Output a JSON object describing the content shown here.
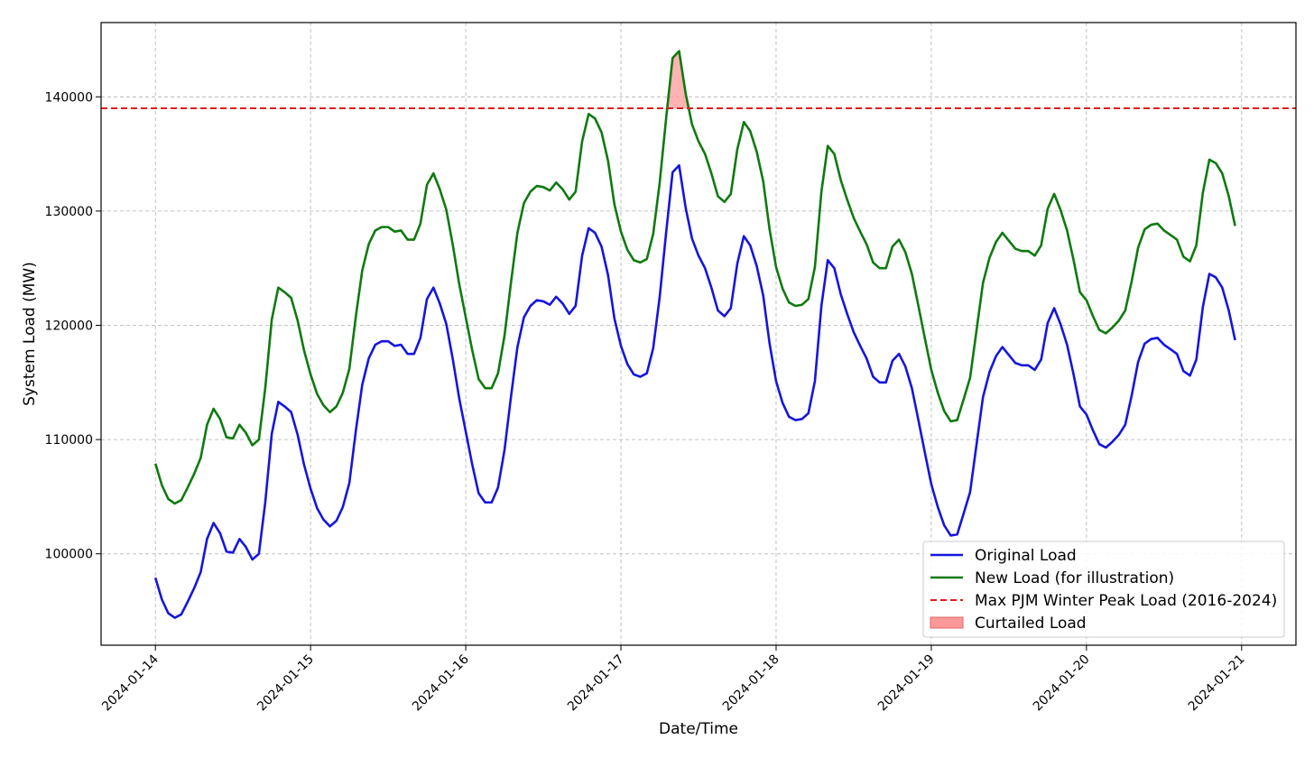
{
  "chart_data": {
    "type": "line",
    "title": "",
    "xlabel": "Date/Time",
    "ylabel": "System Load (MW)",
    "x_ticks": [
      "2024-01-14",
      "2024-01-15",
      "2024-01-16",
      "2024-01-17",
      "2024-01-18",
      "2024-01-19",
      "2024-01-20",
      "2024-01-21"
    ],
    "y_ticks": [
      100000,
      110000,
      120000,
      130000,
      140000
    ],
    "xlim_days": [
      -0.35,
      7.35
    ],
    "ylim": [
      92000,
      146500
    ],
    "grid": true,
    "legend_position": "bottom-right",
    "reference_line": {
      "name": "Max PJM Winter Peak Load (2016-2024)",
      "value": 139000,
      "color": "#e31a1c",
      "style": "dashed"
    },
    "curtailed": {
      "name": "Curtailed Load",
      "color": "#ff9999"
    },
    "offset_mw": 10000,
    "series": [
      {
        "name": "Original Load",
        "color": "#1515e0",
        "x_days": [
          0,
          0.042,
          0.083,
          0.125,
          0.167,
          0.208,
          0.25,
          0.292,
          0.333,
          0.375,
          0.417,
          0.458,
          0.5,
          0.542,
          0.583,
          0.625,
          0.667,
          0.708,
          0.75,
          0.792,
          0.833,
          0.875,
          0.917,
          0.958,
          1,
          1.042,
          1.083,
          1.125,
          1.167,
          1.208,
          1.25,
          1.292,
          1.333,
          1.375,
          1.417,
          1.458,
          1.5,
          1.542,
          1.583,
          1.625,
          1.667,
          1.708,
          1.75,
          1.792,
          1.833,
          1.875,
          1.917,
          1.958,
          2,
          2.042,
          2.083,
          2.125,
          2.167,
          2.208,
          2.25,
          2.292,
          2.333,
          2.375,
          2.417,
          2.458,
          2.5,
          2.542,
          2.583,
          2.625,
          2.667,
          2.708,
          2.75,
          2.792,
          2.833,
          2.875,
          2.917,
          2.958,
          3,
          3.042,
          3.083,
          3.125,
          3.167,
          3.208,
          3.25,
          3.292,
          3.333,
          3.375,
          3.417,
          3.458,
          3.5,
          3.542,
          3.583,
          3.625,
          3.667,
          3.708,
          3.75,
          3.792,
          3.833,
          3.875,
          3.917,
          3.958,
          4,
          4.042,
          4.083,
          4.125,
          4.167,
          4.208,
          4.25,
          4.292,
          4.333,
          4.375,
          4.417,
          4.458,
          4.5,
          4.542,
          4.583,
          4.625,
          4.667,
          4.708,
          4.75,
          4.792,
          4.833,
          4.875,
          4.917,
          4.958,
          5,
          5.042,
          5.083,
          5.125,
          5.167,
          5.208,
          5.25,
          5.292,
          5.333,
          5.375,
          5.417,
          5.458,
          5.5,
          5.542,
          5.583,
          5.625,
          5.667,
          5.708,
          5.75,
          5.792,
          5.833,
          5.875,
          5.917,
          5.958,
          6,
          6.042,
          6.083,
          6.125,
          6.167,
          6.208,
          6.25,
          6.292,
          6.333,
          6.375,
          6.417,
          6.458,
          6.5,
          6.542,
          6.583,
          6.625,
          6.667,
          6.708,
          6.75,
          6.792,
          6.833,
          6.875,
          6.917,
          6.958
        ],
        "values": [
          97900,
          96000,
          94800,
          94400,
          94700,
          95800,
          97000,
          98400,
          101300,
          102700,
          101800,
          100200,
          100100,
          101300,
          100600,
          99500,
          100000,
          104500,
          110500,
          113300,
          112900,
          112400,
          110400,
          107800,
          105700,
          104000,
          103000,
          102400,
          102900,
          104100,
          106200,
          110800,
          114800,
          117100,
          118300,
          118600,
          118600,
          118200,
          118300,
          117500,
          117500,
          118900,
          122300,
          123300,
          121900,
          120100,
          117000,
          113600,
          110700,
          107800,
          105300,
          104500,
          104500,
          105800,
          109100,
          113800,
          118100,
          120700,
          121700,
          122200,
          122100,
          121800,
          122500,
          121900,
          121000,
          121700,
          126100,
          128500,
          128100,
          126900,
          124400,
          120600,
          118200,
          116600,
          115700,
          115500,
          115800,
          118000,
          122500,
          128200,
          133400,
          134000,
          130300,
          127600,
          126100,
          125000,
          123300,
          121300,
          120800,
          121500,
          125400,
          127800,
          127000,
          125200,
          122600,
          118400,
          115100,
          113200,
          112000,
          111700,
          111800,
          112300,
          115100,
          121700,
          125700,
          125000,
          122700,
          121000,
          119400,
          118200,
          117100,
          115500,
          115000,
          115000,
          116900,
          117500,
          116400,
          114500,
          111700,
          108900,
          106100,
          104100,
          102500,
          101600,
          101700,
          103500,
          105400,
          109600,
          113700,
          115900,
          117300,
          118100,
          117400,
          116700,
          116500,
          116500,
          116100,
          117000,
          120200,
          121500,
          120100,
          118300,
          115700,
          112900,
          112200,
          110800,
          109600,
          109300,
          109800,
          110400,
          111300,
          113900,
          116800,
          118400,
          118800,
          118900,
          118300,
          117900,
          117500,
          116000,
          115600,
          117000,
          121600,
          124500,
          124200,
          123300,
          121300,
          118700
        ]
      },
      {
        "name": "New Load (for illustration)",
        "color": "#0f7a0f"
      }
    ]
  }
}
